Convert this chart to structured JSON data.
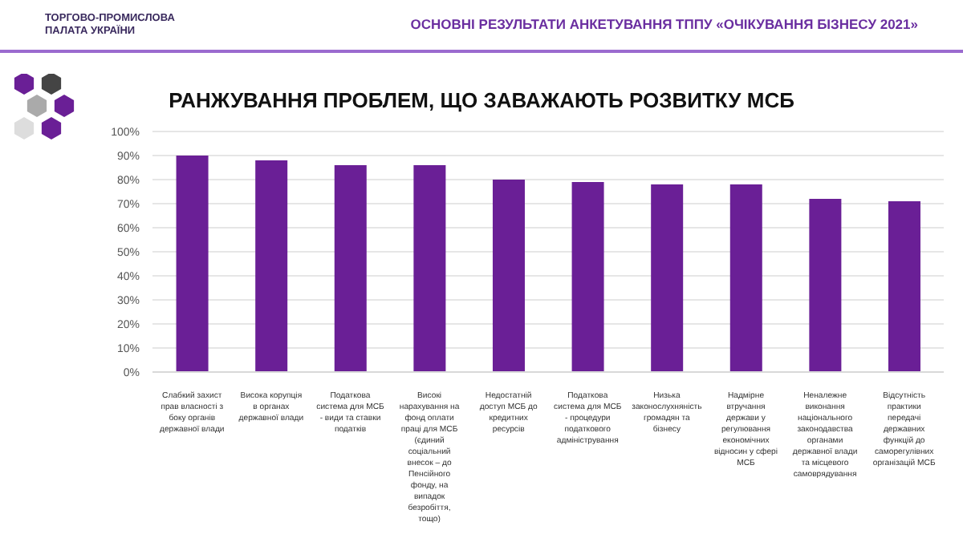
{
  "chart_data": {
    "type": "bar",
    "title": "РАНЖУВАННЯ ПРОБЛЕМ, ЩО ЗАВАЖАЮТЬ РОЗВИТКУ МСБ",
    "subtitle": "ОСНОВНІ РЕЗУЛЬТАТИ АНКЕТУВАННЯ ТППУ «ОЧІКУВАННЯ БІЗНЕСУ 2021»",
    "annotations": [
      "ТОРГОВО-ПРОМИСЛОВА ПАЛАТА УКРАЇНИ"
    ],
    "categories": [
      "Слабкий захист прав власності з боку органів державної влади",
      "Висока корупція в органах державної влади",
      "Податкова система для МСБ - види та ставки податків",
      "Високі нарахування на фонд оплати праці для МСБ (єдиний соціальний внесок – до Пенсійного фонду, на випадок безробіття, тощо)",
      "Недостатній доступ МСБ до кредитних ресурсів",
      "Податкова система для МСБ - процедури податкового адміністрування",
      "Низька законослухняність громадян та бізнесу",
      "Надмірне втручання держави у регулювання економічних відносин у сфері МСБ",
      "Неналежне виконання національного законодавства органами державної влади та місцевого самоврядування",
      "Відсутність практики передачі державних функцій до саморегулівних організацій МСБ"
    ],
    "values": [
      90,
      88,
      86,
      86,
      80,
      79,
      78,
      78,
      72,
      71
    ],
    "color": "#6a1f96",
    "ylim": [
      0,
      100
    ],
    "yticks": [
      {
        "value": 0,
        "label": "0%"
      },
      {
        "value": 10,
        "label": "10%"
      },
      {
        "value": 20,
        "label": "20%"
      },
      {
        "value": 30,
        "label": "30%"
      },
      {
        "value": 40,
        "label": "40%"
      },
      {
        "value": 50,
        "label": "50%"
      },
      {
        "value": 60,
        "label": "60%"
      },
      {
        "value": 70,
        "label": "70%"
      },
      {
        "value": 80,
        "label": "80%"
      },
      {
        "value": 90,
        "label": "90%"
      },
      {
        "value": 100,
        "label": "100%"
      }
    ],
    "grid": "y"
  }
}
